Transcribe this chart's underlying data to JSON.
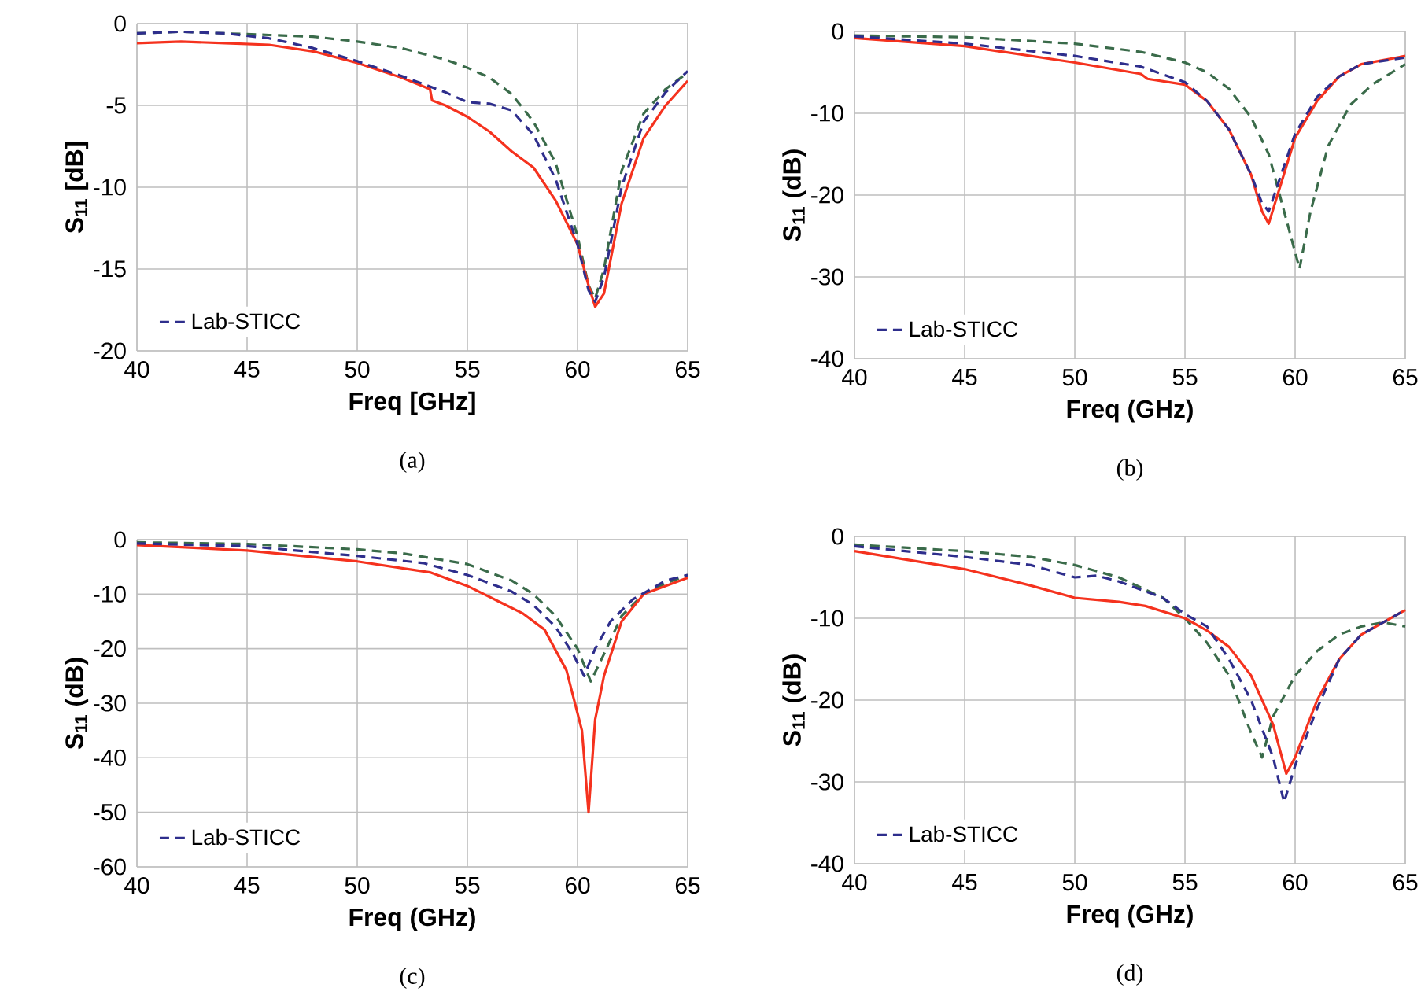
{
  "chart_data": [
    {
      "type": "line",
      "xlabel": "Freq [GHz]",
      "ylabel": "S$_{11}$ [dB]",
      "xlim": [
        40,
        65
      ],
      "xticks": [
        40,
        45,
        50,
        55,
        60,
        65
      ],
      "ylim": [
        -20,
        0
      ],
      "yticks": [
        -20,
        -15,
        -10,
        -5,
        0
      ],
      "grid": true,
      "legend": "bottom left",
      "annotations": [
        "(a)"
      ],
      "series": [
        {
          "color": "#3a6b4a",
          "line_style": "dashed",
          "x": [
            40,
            42,
            44,
            46,
            48,
            50,
            52,
            54,
            55,
            56,
            57,
            58,
            59,
            60,
            60.5,
            60.8,
            61.2,
            62,
            63,
            64,
            65
          ],
          "values": [
            -0.6,
            -0.5,
            -0.6,
            -0.7,
            -0.8,
            -1.1,
            -1.5,
            -2.2,
            -2.7,
            -3.3,
            -4.3,
            -6,
            -8.5,
            -13,
            -16,
            -16.8,
            -15,
            -9,
            -5.5,
            -4,
            -3
          ]
        },
        {
          "color": "#f5321e",
          "line_style": "solid",
          "x": [
            40,
            42,
            44,
            46,
            48,
            50,
            52,
            53.3,
            53.4,
            54,
            55,
            56,
            57,
            58,
            59,
            60,
            60.5,
            60.8,
            61.2,
            62,
            63,
            64,
            65
          ],
          "values": [
            -1.2,
            -1.1,
            -1.2,
            -1.3,
            -1.7,
            -2.4,
            -3.3,
            -4,
            -4.7,
            -5,
            -5.7,
            -6.6,
            -7.8,
            -8.8,
            -10.8,
            -13.5,
            -16,
            -17.3,
            -16.5,
            -11,
            -7,
            -5,
            -3.5
          ]
        },
        {
          "name": "Lab-STICC",
          "color": "#2e2e8c",
          "line_style": "dashed",
          "x": [
            40,
            42,
            44,
            46,
            48,
            50,
            52,
            54,
            55,
            56,
            57,
            58,
            59,
            60,
            60.5,
            60.8,
            61.2,
            62,
            63,
            64,
            65
          ],
          "values": [
            -0.6,
            -0.5,
            -0.6,
            -0.9,
            -1.5,
            -2.3,
            -3.2,
            -4.2,
            -4.8,
            -4.9,
            -5.3,
            -6.8,
            -9.5,
            -13.5,
            -16.3,
            -17,
            -15.5,
            -10,
            -6,
            -4.2,
            -2.9
          ]
        }
      ]
    },
    {
      "type": "line",
      "xlabel": "Freq (GHz)",
      "ylabel": "S$_{11}$ (dB)",
      "xlim": [
        40,
        65
      ],
      "xticks": [
        40,
        45,
        50,
        55,
        60,
        65
      ],
      "ylim": [
        -40,
        0
      ],
      "yticks": [
        -40,
        -30,
        -20,
        -10,
        0
      ],
      "grid": true,
      "legend": "bottom left",
      "annotations": [
        "(b)"
      ],
      "series": [
        {
          "color": "#3a6b4a",
          "line_style": "dashed",
          "x": [
            40,
            45,
            50,
            53,
            55,
            56,
            57,
            58,
            58.8,
            59.5,
            60.2,
            60.7,
            61.5,
            62.5,
            63.5,
            65
          ],
          "values": [
            -0.5,
            -0.7,
            -1.5,
            -2.5,
            -3.8,
            -5,
            -7,
            -10.5,
            -15,
            -22,
            -29,
            -22,
            -14,
            -9,
            -6.5,
            -4
          ]
        },
        {
          "color": "#f5321e",
          "line_style": "solid",
          "x": [
            40,
            45,
            50,
            53,
            53.3,
            55,
            56,
            57,
            58,
            58.5,
            58.8,
            59.2,
            60,
            61,
            62,
            63,
            65
          ],
          "values": [
            -0.8,
            -1.8,
            -3.8,
            -5.2,
            -5.8,
            -6.5,
            -8.5,
            -12,
            -17.5,
            -22,
            -23.5,
            -20,
            -13,
            -8.5,
            -5.5,
            -4,
            -3
          ]
        },
        {
          "name": "Lab-STICC",
          "color": "#2e2e8c",
          "line_style": "dashed",
          "x": [
            40,
            45,
            50,
            53,
            55,
            56,
            57,
            58,
            58.5,
            58.8,
            59.3,
            60,
            61,
            62,
            63,
            65
          ],
          "values": [
            -0.6,
            -1.5,
            -3,
            -4.3,
            -6.2,
            -8.5,
            -12,
            -17.5,
            -21,
            -22,
            -18,
            -12.5,
            -8,
            -5.5,
            -4,
            -3.2
          ]
        }
      ]
    },
    {
      "type": "line",
      "xlabel": "Freq (GHz)",
      "ylabel": "S$_{11}$ (dB)",
      "xlim": [
        40,
        65
      ],
      "xticks": [
        40,
        45,
        50,
        55,
        60,
        65
      ],
      "ylim": [
        -60,
        0
      ],
      "yticks": [
        -60,
        -50,
        -40,
        -30,
        -20,
        -10,
        0
      ],
      "grid": true,
      "legend": "bottom left",
      "annotations": [
        "(c)"
      ],
      "series": [
        {
          "color": "#3a6b4a",
          "line_style": "dashed",
          "x": [
            40,
            45,
            50,
            52,
            55,
            57,
            58,
            59,
            60,
            60.6,
            61.2,
            62,
            63,
            64,
            65
          ],
          "values": [
            -0.5,
            -0.8,
            -1.8,
            -2.5,
            -4.5,
            -7.5,
            -10,
            -14,
            -20,
            -26,
            -21,
            -14,
            -10,
            -8,
            -6.5
          ]
        },
        {
          "color": "#f5321e",
          "line_style": "solid",
          "x": [
            40,
            45,
            50,
            53.3,
            55,
            56.5,
            57.5,
            58.5,
            59.5,
            60.2,
            60.5,
            60.8,
            61.2,
            62,
            63,
            64,
            65
          ],
          "values": [
            -1,
            -2,
            -4,
            -6,
            -8.5,
            -11.5,
            -13.5,
            -16.5,
            -24,
            -35,
            -50,
            -33,
            -25,
            -15,
            -10,
            -8.5,
            -7
          ]
        },
        {
          "name": "Lab-STICC",
          "color": "#2e2e8c",
          "line_style": "dashed",
          "x": [
            40,
            45,
            50,
            53,
            55,
            57,
            58,
            59,
            59.8,
            60.3,
            60.8,
            61.5,
            62.5,
            64,
            65
          ],
          "values": [
            -0.7,
            -1.2,
            -3,
            -4.3,
            -6.5,
            -9.5,
            -12,
            -16,
            -21,
            -25,
            -20,
            -15,
            -11,
            -7.5,
            -6.5
          ]
        }
      ]
    },
    {
      "type": "line",
      "xlabel": "Freq (GHz)",
      "ylabel": "S$_{11}$ (dB)",
      "xlim": [
        40,
        65
      ],
      "xticks": [
        40,
        45,
        50,
        55,
        60,
        65
      ],
      "ylim": [
        -40,
        0
      ],
      "yticks": [
        -40,
        -30,
        -20,
        -10,
        0
      ],
      "grid": true,
      "legend": "bottom left",
      "annotations": [
        "(d)"
      ],
      "series": [
        {
          "color": "#3a6b4a",
          "line_style": "dashed",
          "x": [
            40,
            45,
            48,
            50,
            52,
            54,
            55,
            56,
            57,
            58,
            58.5,
            59,
            60,
            61,
            62,
            63,
            64,
            65
          ],
          "values": [
            -1,
            -1.8,
            -2.5,
            -3.5,
            -5,
            -7.5,
            -10,
            -13,
            -17,
            -24,
            -27,
            -22,
            -17,
            -14,
            -12,
            -11,
            -10.5,
            -11
          ]
        },
        {
          "color": "#f5321e",
          "line_style": "solid",
          "x": [
            40,
            45,
            48,
            50,
            52,
            53.2,
            55,
            56,
            57,
            58,
            59,
            59.6,
            60,
            61,
            62,
            63,
            64,
            65
          ],
          "values": [
            -1.8,
            -4,
            -6,
            -7.5,
            -8,
            -8.5,
            -10,
            -11.5,
            -13.5,
            -17,
            -23,
            -29,
            -27,
            -20,
            -15,
            -12,
            -10.5,
            -9
          ]
        },
        {
          "name": "Lab-STICC",
          "color": "#2e2e8c",
          "line_style": "dashed",
          "x": [
            40,
            45,
            48,
            50,
            51,
            52,
            54,
            55,
            56,
            57,
            58,
            59,
            59.5,
            60,
            61,
            62,
            63,
            64,
            65
          ],
          "values": [
            -1.2,
            -2.5,
            -3.5,
            -5,
            -4.8,
            -5.5,
            -7.5,
            -9.5,
            -11,
            -15,
            -20,
            -27,
            -32.5,
            -28,
            -21,
            -15,
            -12,
            -10.5,
            -9
          ]
        }
      ]
    }
  ]
}
